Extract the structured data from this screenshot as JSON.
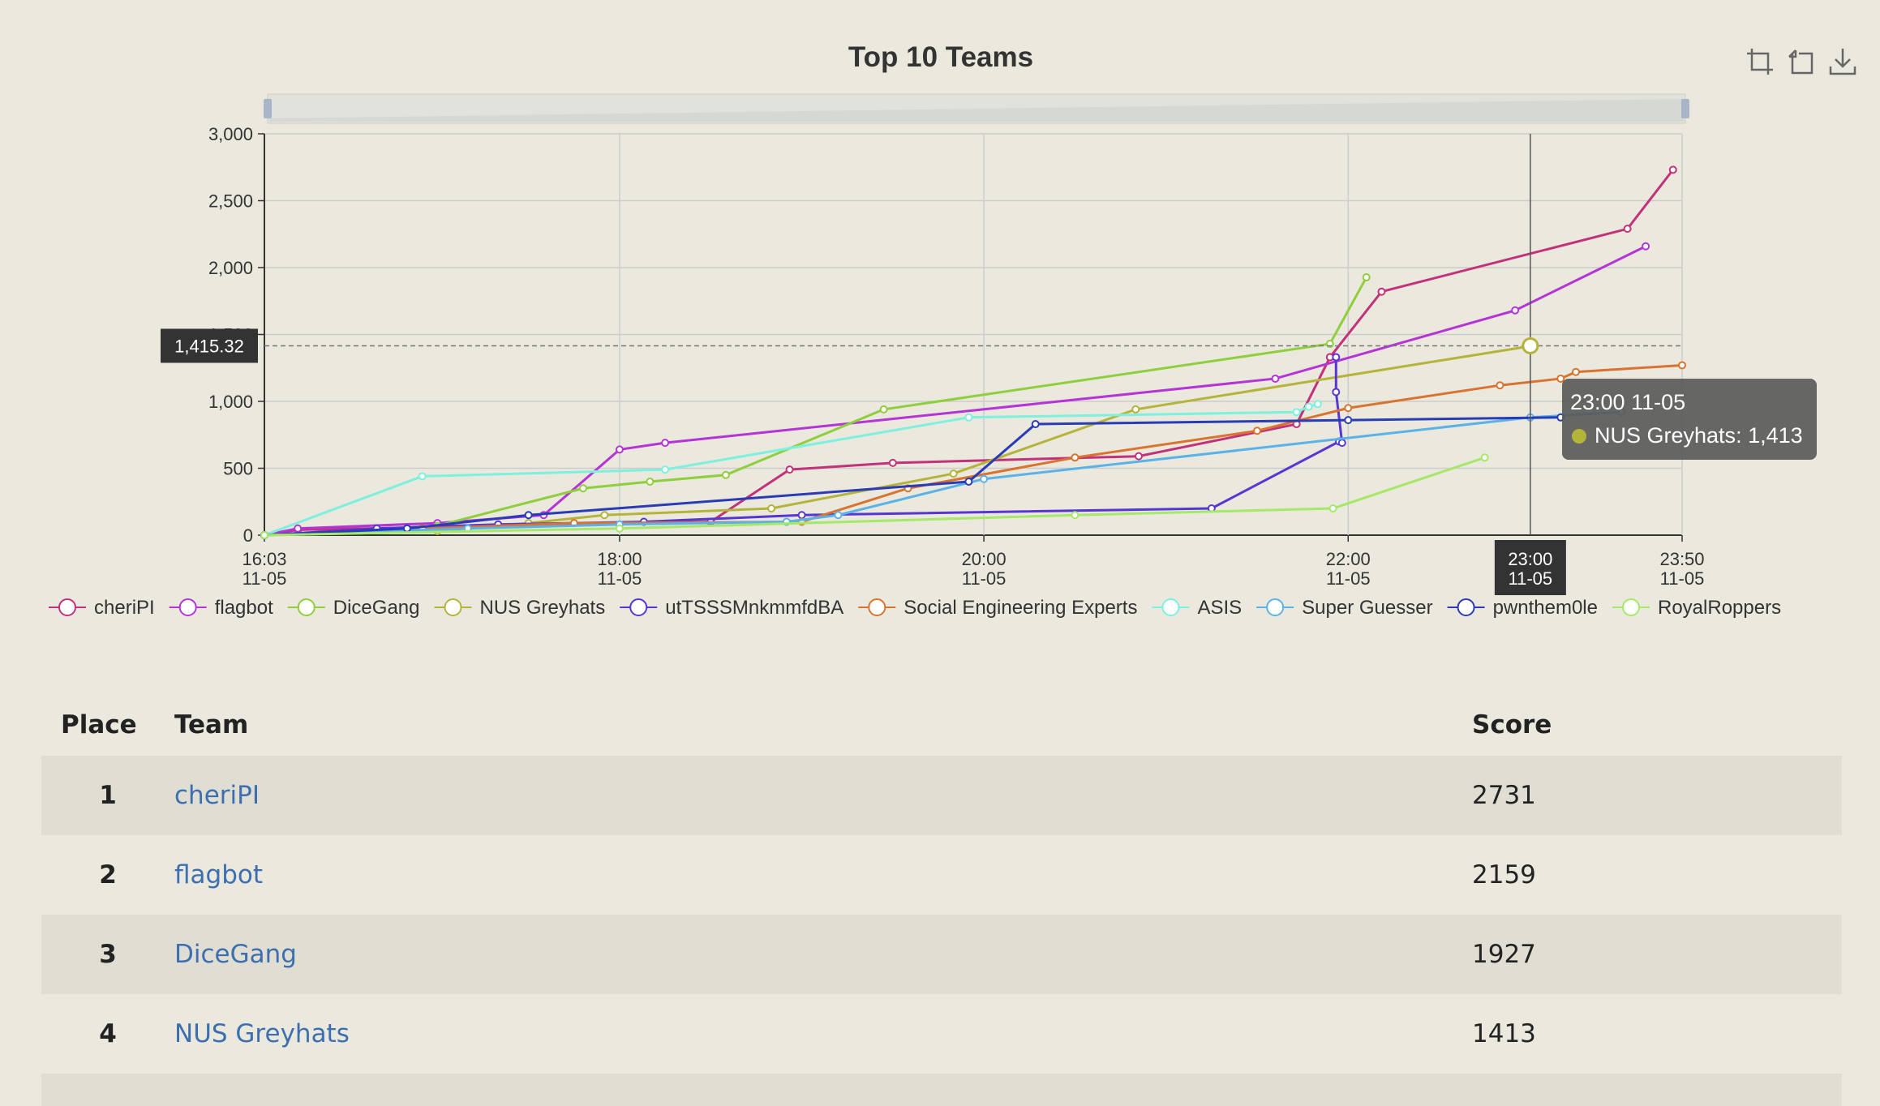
{
  "chart": {
    "title": "Top 10 Teams",
    "crosshair_value": "1,415.32",
    "crosshair_time": [
      "23:00",
      "11-05"
    ],
    "tooltip": {
      "title": "23:00 11-05",
      "series": "NUS Greyhats",
      "value": "1,413",
      "color": "#b5b43a"
    },
    "toolbox": [
      {
        "name": "data-zoom-icon"
      },
      {
        "name": "restore-icon"
      },
      {
        "name": "save-image-icon"
      }
    ]
  },
  "chart_data": {
    "type": "line",
    "title": "Top 10 Teams",
    "xlabel": "",
    "ylabel": "",
    "x_domain": [
      "11-05 16:03",
      "11-05 23:50"
    ],
    "x_ticks": [
      [
        "16:03",
        "11-05"
      ],
      [
        "18:00",
        "11-05"
      ],
      [
        "20:00",
        "11-05"
      ],
      [
        "22:00",
        "11-05"
      ],
      [
        "23:50",
        "11-05"
      ]
    ],
    "ylim": [
      0,
      3000
    ],
    "y_ticks": [
      "0",
      "500",
      "1,000",
      "1,500",
      "2,000",
      "2,500",
      "3,000"
    ],
    "grid": true,
    "legend_position": "bottom",
    "series": [
      {
        "name": "cheriPI",
        "color": "#c2327a",
        "points": [
          [
            "16:03",
            0
          ],
          [
            "16:14",
            40
          ],
          [
            "17:00",
            60
          ],
          [
            "18:30",
            100
          ],
          [
            "18:56",
            490
          ],
          [
            "19:30",
            540
          ],
          [
            "20:51",
            590
          ],
          [
            "21:43",
            830
          ],
          [
            "21:54",
            1330
          ],
          [
            "22:11",
            1820
          ],
          [
            "23:32",
            2290
          ],
          [
            "23:47",
            2731
          ]
        ]
      },
      {
        "name": "flagbot",
        "color": "#b534d6",
        "points": [
          [
            "16:03",
            0
          ],
          [
            "16:14",
            50
          ],
          [
            "17:00",
            90
          ],
          [
            "17:35",
            150
          ],
          [
            "18:00",
            640
          ],
          [
            "18:15",
            690
          ],
          [
            "21:36",
            1170
          ],
          [
            "22:55",
            1680
          ],
          [
            "23:38",
            2159
          ]
        ]
      },
      {
        "name": "DiceGang",
        "color": "#8fce3c",
        "points": [
          [
            "16:03",
            0
          ],
          [
            "17:00",
            70
          ],
          [
            "17:48",
            350
          ],
          [
            "18:10",
            400
          ],
          [
            "18:35",
            450
          ],
          [
            "19:27",
            940
          ],
          [
            "21:54",
            1430
          ],
          [
            "22:06",
            1927
          ]
        ]
      },
      {
        "name": "NUS Greyhats",
        "color": "#b5b43a",
        "points": [
          [
            "16:03",
            0
          ],
          [
            "17:00",
            30
          ],
          [
            "17:30",
            90
          ],
          [
            "17:55",
            150
          ],
          [
            "18:50",
            200
          ],
          [
            "19:50",
            460
          ],
          [
            "20:50",
            940
          ],
          [
            "23:00",
            1413
          ]
        ]
      },
      {
        "name": "utTSSSMnkmmfdBA",
        "color": "#5538d4",
        "points": [
          [
            "16:03",
            0
          ],
          [
            "16:40",
            50
          ],
          [
            "17:20",
            80
          ],
          [
            "18:08",
            100
          ],
          [
            "19:00",
            150
          ],
          [
            "21:15",
            200
          ],
          [
            "21:57",
            700
          ],
          [
            "21:58",
            690
          ],
          [
            "21:56",
            1070
          ],
          [
            "21:56",
            1330
          ]
        ]
      },
      {
        "name": "Social Engineering Experts",
        "color": "#d8742f",
        "points": [
          [
            "16:03",
            0
          ],
          [
            "16:55",
            50
          ],
          [
            "17:45",
            90
          ],
          [
            "19:00",
            100
          ],
          [
            "19:35",
            350
          ],
          [
            "20:30",
            580
          ],
          [
            "21:30",
            780
          ],
          [
            "22:00",
            950
          ],
          [
            "22:50",
            1120
          ],
          [
            "23:10",
            1170
          ],
          [
            "23:15",
            1220
          ],
          [
            "23:50",
            1270
          ]
        ]
      },
      {
        "name": "ASIS",
        "color": "#7df0de",
        "points": [
          [
            "16:03",
            0
          ],
          [
            "16:55",
            440
          ],
          [
            "18:15",
            490
          ],
          [
            "19:55",
            880
          ],
          [
            "21:43",
            920
          ],
          [
            "21:47",
            960
          ],
          [
            "21:50",
            980
          ]
        ]
      },
      {
        "name": "Super Guesser",
        "color": "#5ab2e8",
        "points": [
          [
            "16:03",
            0
          ],
          [
            "17:10",
            50
          ],
          [
            "18:00",
            80
          ],
          [
            "18:55",
            100
          ],
          [
            "19:12",
            150
          ],
          [
            "20:00",
            420
          ],
          [
            "23:00",
            880
          ],
          [
            "23:30",
            920
          ]
        ]
      },
      {
        "name": "pwnthem0le",
        "color": "#2a3bb6",
        "points": [
          [
            "16:03",
            0
          ],
          [
            "16:50",
            50
          ],
          [
            "17:30",
            150
          ],
          [
            "19:55",
            400
          ],
          [
            "20:17",
            830
          ],
          [
            "22:00",
            860
          ],
          [
            "23:10",
            880
          ]
        ]
      },
      {
        "name": "RoyalRoppers",
        "color": "#a6e86a",
        "points": [
          [
            "16:03",
            0
          ],
          [
            "18:00",
            50
          ],
          [
            "20:30",
            150
          ],
          [
            "21:55",
            200
          ],
          [
            "22:45",
            580
          ]
        ]
      }
    ]
  },
  "table": {
    "headers": {
      "place": "Place",
      "team": "Team",
      "score": "Score"
    },
    "rows": [
      {
        "place": "1",
        "team": "cheriPI",
        "score": "2731"
      },
      {
        "place": "2",
        "team": "flagbot",
        "score": "2159"
      },
      {
        "place": "3",
        "team": "DiceGang",
        "score": "1927"
      },
      {
        "place": "4",
        "team": "NUS Greyhats",
        "score": "1413"
      }
    ]
  }
}
